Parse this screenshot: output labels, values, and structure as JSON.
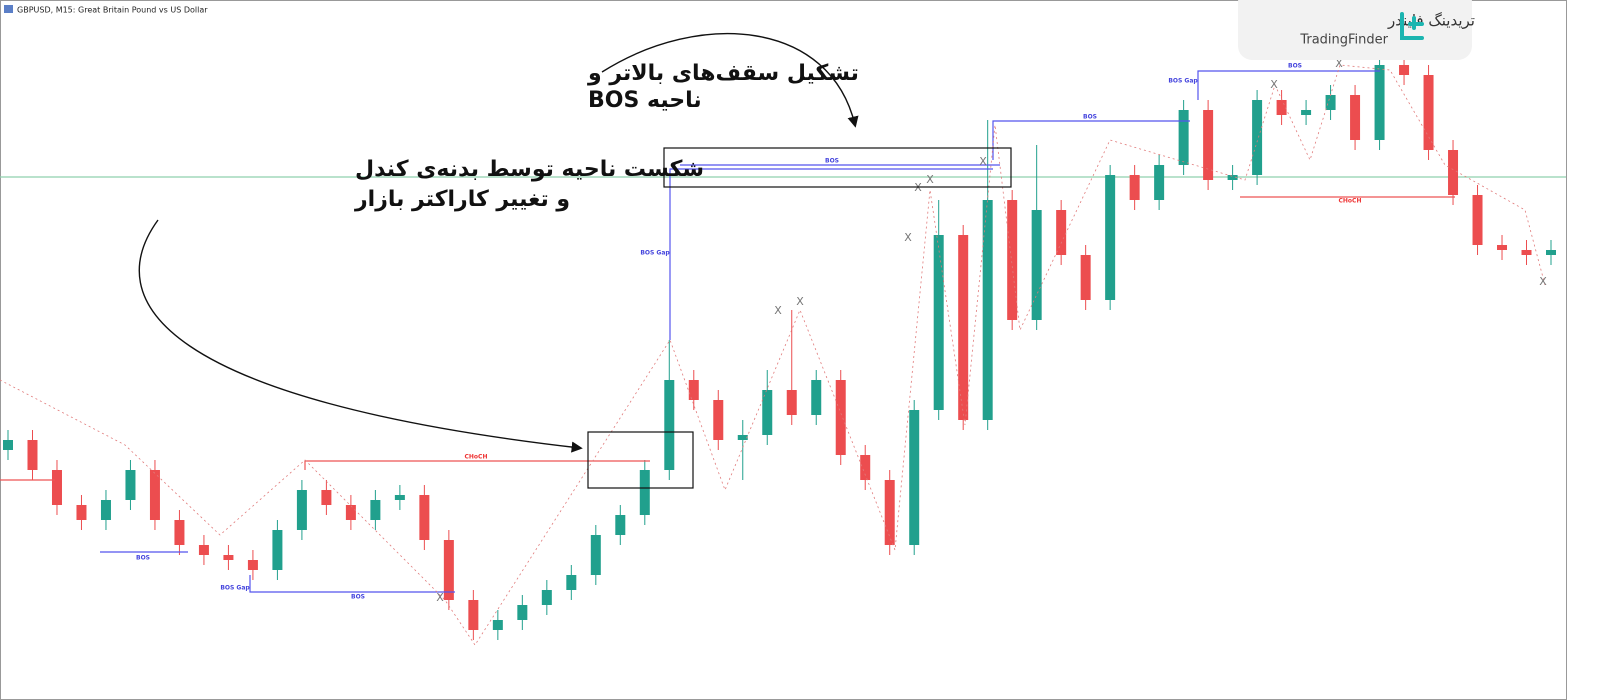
{
  "chart_data": {
    "type": "candlestick",
    "title": "GBPUSD, M15:  Great Britain Pound vs US Dollar",
    "open": [
      250,
      260,
      230,
      195,
      180,
      200,
      230,
      180,
      155,
      145,
      140,
      130,
      170,
      210,
      195,
      180,
      200,
      205,
      160,
      100,
      70,
      80,
      95,
      110,
      125,
      165,
      185,
      230,
      320,
      300,
      260,
      265,
      310,
      285,
      320,
      245,
      220,
      155,
      290,
      465,
      280,
      500,
      380,
      490,
      445,
      400,
      525,
      500,
      535,
      590,
      520,
      525,
      600,
      585,
      590,
      605,
      560,
      635,
      625,
      550,
      505,
      455,
      450,
      445
    ],
    "high": [
      270,
      270,
      240,
      205,
      210,
      240,
      240,
      190,
      165,
      155,
      150,
      180,
      220,
      220,
      205,
      210,
      215,
      215,
      170,
      110,
      90,
      105,
      120,
      135,
      175,
      195,
      240,
      360,
      330,
      310,
      280,
      330,
      390,
      330,
      330,
      255,
      230,
      300,
      500,
      475,
      580,
      510,
      555,
      500,
      455,
      535,
      535,
      545,
      600,
      600,
      535,
      610,
      610,
      600,
      615,
      615,
      660,
      645,
      635,
      560,
      515,
      465,
      460,
      460
    ],
    "low": [
      240,
      220,
      185,
      170,
      170,
      190,
      170,
      145,
      135,
      130,
      120,
      120,
      160,
      185,
      170,
      170,
      190,
      150,
      90,
      60,
      60,
      70,
      85,
      100,
      115,
      155,
      175,
      220,
      290,
      250,
      220,
      255,
      275,
      275,
      235,
      210,
      145,
      145,
      280,
      270,
      270,
      370,
      370,
      435,
      390,
      390,
      490,
      490,
      525,
      510,
      510,
      515,
      575,
      575,
      580,
      550,
      550,
      615,
      540,
      495,
      445,
      440,
      435,
      435
    ],
    "close": [
      260,
      230,
      195,
      180,
      200,
      230,
      180,
      155,
      145,
      140,
      130,
      170,
      210,
      195,
      180,
      200,
      205,
      160,
      100,
      70,
      80,
      95,
      110,
      125,
      165,
      185,
      230,
      320,
      300,
      260,
      265,
      310,
      285,
      320,
      245,
      220,
      155,
      290,
      465,
      280,
      500,
      380,
      490,
      445,
      400,
      525,
      500,
      535,
      590,
      520,
      525,
      600,
      585,
      590,
      605,
      560,
      635,
      625,
      550,
      505,
      455,
      450,
      445,
      450
    ],
    "up_color": "#21a08d",
    "down_color": "#ec4d4f",
    "ylim": [
      0,
      700
    ],
    "labels": {
      "bos": "BOS",
      "bos_gap": "BOS Gap",
      "choch": "CHoCH",
      "swing": "X"
    },
    "annotations": [
      "تشکیل سقف‌های بالاتر و",
      "ناحیه BOS",
      "شکست ناحیه توسط بدنه‌ی کندل",
      "و تغییر کاراکتر بازار"
    ]
  },
  "logo": {
    "name_fa": "تریدینگ فایندر",
    "name_en": "TradingFinder"
  }
}
